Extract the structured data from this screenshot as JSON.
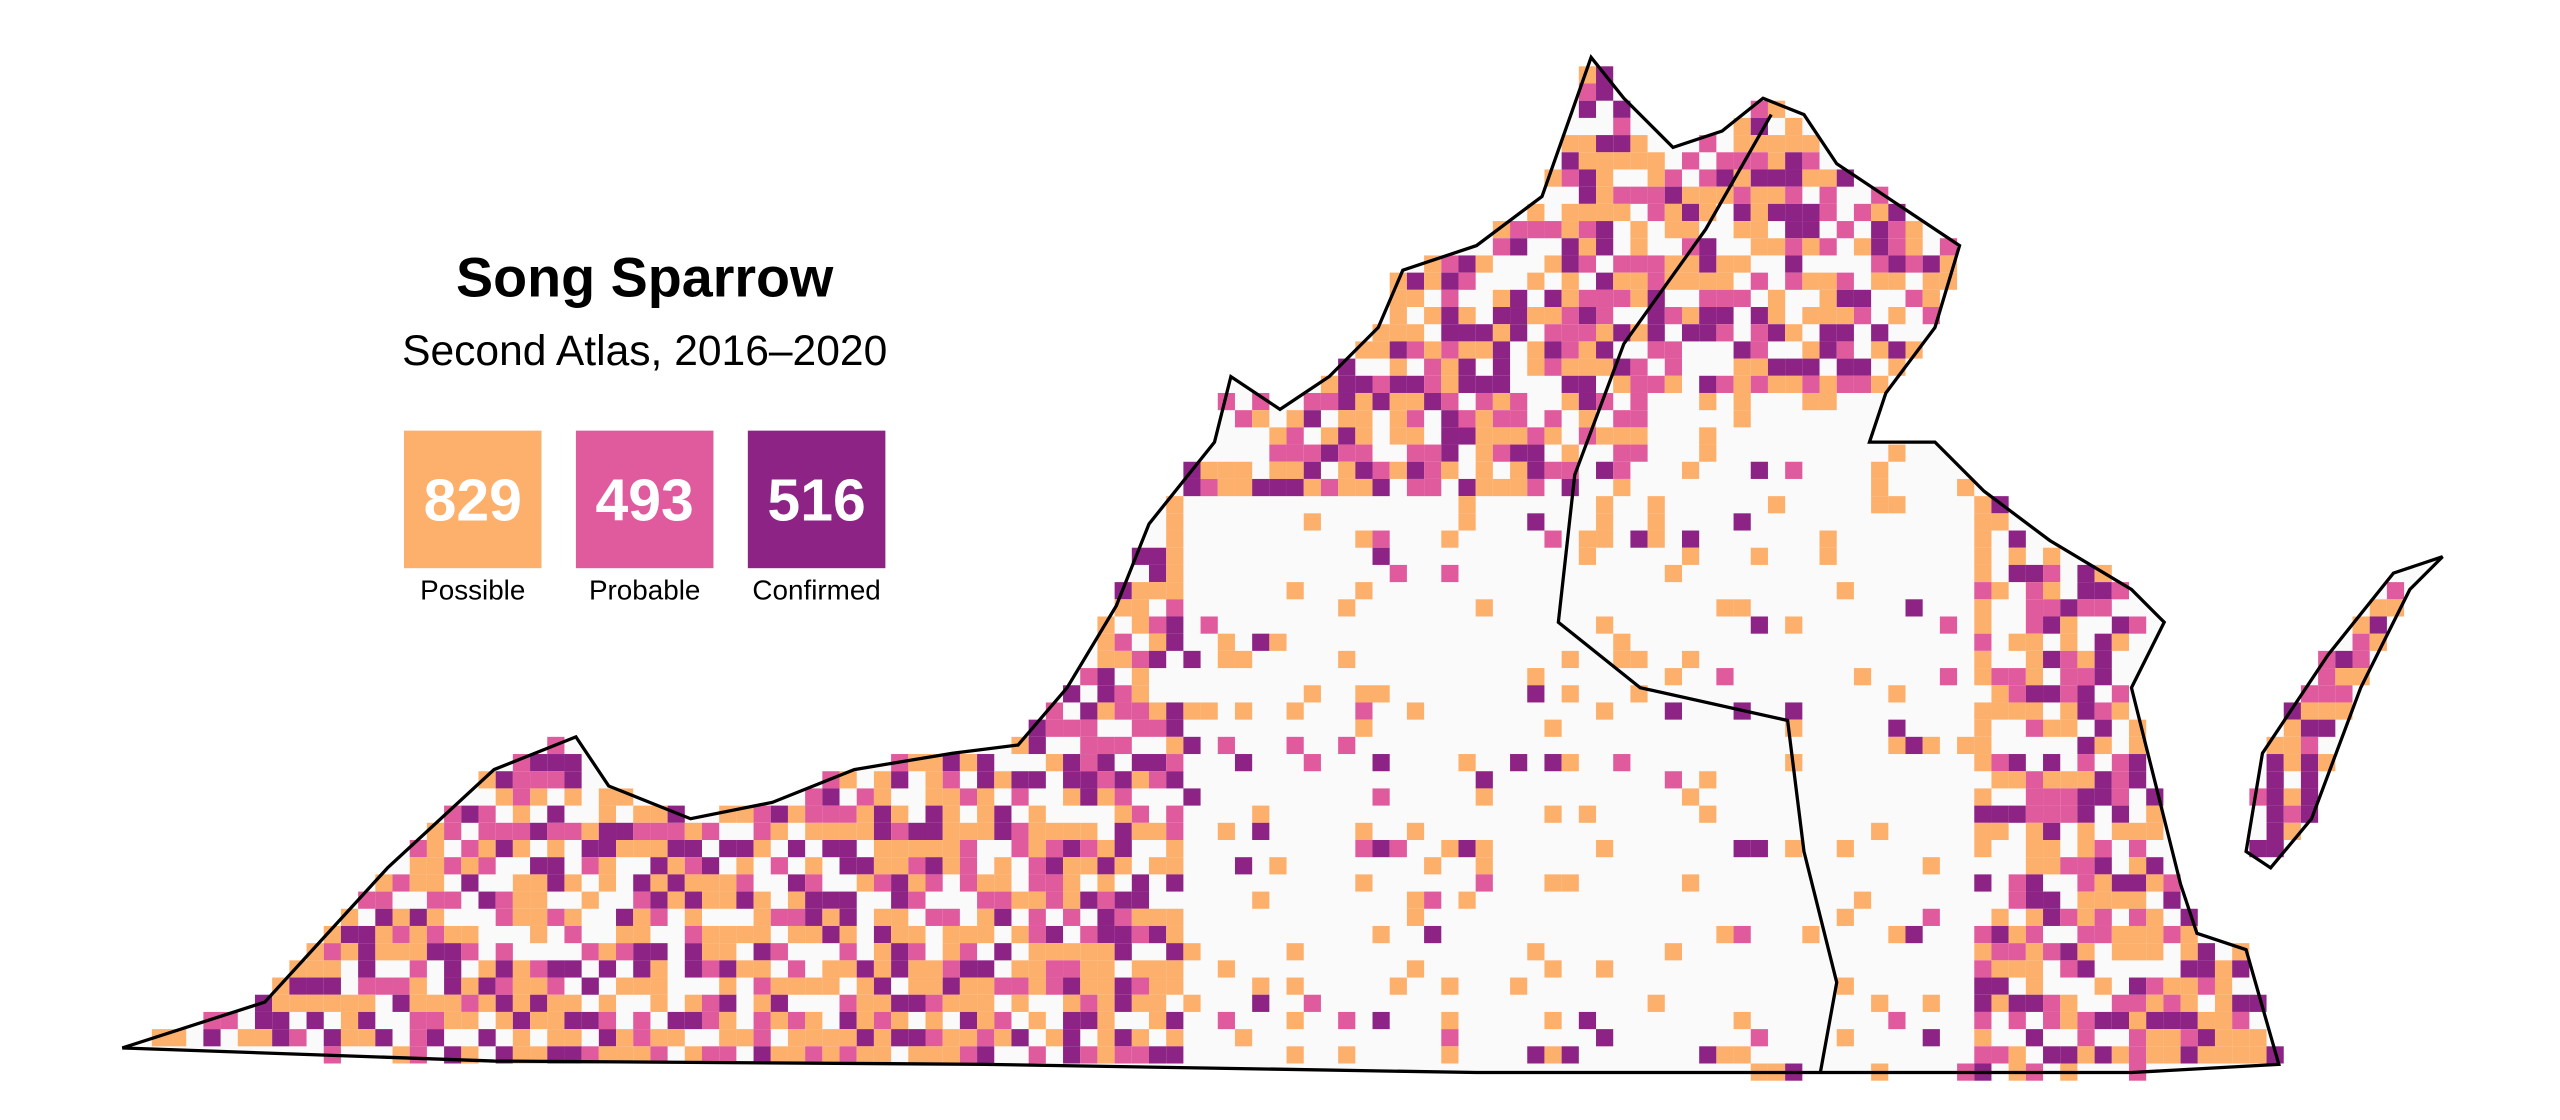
{
  "title": "Song Sparrow",
  "subtitle": "Second Atlas, 2016–2020",
  "legend": [
    {
      "count": "829",
      "label": "Possible",
      "color": "#fdb06c"
    },
    {
      "count": "493",
      "label": "Probable",
      "color": "#e05b9d"
    },
    {
      "count": "516",
      "label": "Confirmed",
      "color": "#8c2385"
    }
  ]
}
